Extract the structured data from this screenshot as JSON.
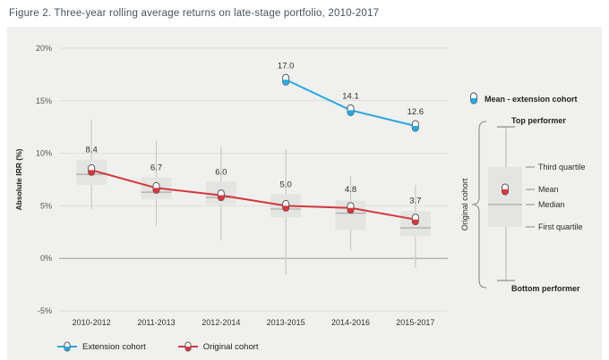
{
  "figure_title": "Figure 2. Three-year rolling average returns on late-stage portfolio, 2010-2017",
  "colors": {
    "extension": "#2aa7de",
    "original": "#d2383f",
    "marker_outline": "#58585b",
    "box_fill": "#e4e4e2",
    "median_line": "#aaaaa8",
    "whisker": "#c9c9c7",
    "grid": "#dedddb",
    "zero_line": "#9b9b99"
  },
  "chart_data": {
    "type": "line+boxplot",
    "title": "Three-year rolling average returns on late-stage portfolio, 2010-2017",
    "ylabel": "Absolute IRR (%)",
    "ylim": [
      -5,
      20
    ],
    "yticks": [
      {
        "value": 20,
        "label": "20%"
      },
      {
        "value": 15,
        "label": "15%"
      },
      {
        "value": 10,
        "label": "10%"
      },
      {
        "value": 5,
        "label": "5%"
      },
      {
        "value": 0,
        "label": "0%"
      },
      {
        "value": -5,
        "label": "-5%"
      }
    ],
    "categories": [
      "2010-2012",
      "2011-2013",
      "2012-2014",
      "2013-2015",
      "2014-2016",
      "2015-2017"
    ],
    "series": [
      {
        "name": "Extension cohort",
        "color": "#2aa7de",
        "label_anchor": "marker",
        "values": [
          null,
          null,
          null,
          17.0,
          14.1,
          12.6
        ]
      },
      {
        "name": "Original cohort",
        "color": "#d2383f",
        "label_anchor": "box",
        "values": [
          8.4,
          6.7,
          6.0,
          5.0,
          4.8,
          3.7
        ]
      }
    ],
    "boxes": [
      {
        "lo": 4.7,
        "q1": 7.0,
        "median": 8.0,
        "q3": 9.4,
        "hi": 13.2
      },
      {
        "lo": 3.1,
        "q1": 5.6,
        "median": 6.3,
        "q3": 7.7,
        "hi": 11.2
      },
      {
        "lo": 1.7,
        "q1": 5.1,
        "median": 5.8,
        "q3": 7.3,
        "hi": 10.6
      },
      {
        "lo": -1.6,
        "q1": 3.9,
        "median": 4.7,
        "q3": 6.1,
        "hi": 10.4
      },
      {
        "lo": 0.8,
        "q1": 2.7,
        "median": 4.3,
        "q3": 5.5,
        "hi": 7.8
      },
      {
        "lo": -0.9,
        "q1": 2.1,
        "median": 2.9,
        "q3": 4.5,
        "hi": 7.0
      }
    ],
    "legend_position": "bottom-left",
    "grid": true
  },
  "legend": {
    "items": [
      {
        "label": "Extension cohort"
      },
      {
        "label": "Original cohort"
      }
    ]
  },
  "side_legend": {
    "mean_extension_label": "Mean - extension cohort",
    "bracket_label": "Original cohort",
    "top_label": "Top performer",
    "third_quartile_label": "Third quartile",
    "mean_label": "Mean",
    "median_label": "Median",
    "first_quartile_label": "First quartile",
    "bottom_label": "Bottom performer"
  }
}
